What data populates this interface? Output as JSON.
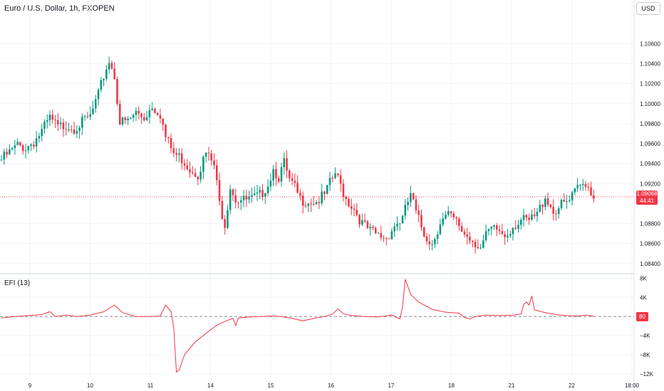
{
  "header": {
    "title": "Euro / U.S. Dollar, 1h, FXOPEN",
    "currency_button": "USD"
  },
  "price_badge": {
    "price": "1.09068",
    "countdown": "44:41"
  },
  "indicator": {
    "label": "EFI (13)",
    "last_value": "80"
  },
  "colors": {
    "up": "#089981",
    "down": "#f23645",
    "efi_line": "#f23645",
    "grid": "#f0f3fa"
  },
  "chart_data": [
    {
      "type": "candlestick",
      "title": "Euro / U.S. Dollar, 1h, FXOPEN",
      "x_tick_labels": [
        "9",
        "10",
        "11",
        "14",
        "15",
        "16",
        "17",
        "18",
        "21",
        "22",
        "18:00"
      ],
      "y_tick_labels": [
        "1.10600",
        "1.10400",
        "1.10200",
        "1.10000",
        "1.09800",
        "1.09600",
        "1.09400",
        "1.09200",
        "1.08800",
        "1.08600",
        "1.08400"
      ],
      "ylim": [
        1.0832,
        1.1088
      ],
      "last_price": 1.09068,
      "approx_close_path": [
        [
          0,
          1.0944
        ],
        [
          3,
          1.0951
        ],
        [
          6,
          1.0958
        ],
        [
          9,
          1.0956
        ],
        [
          12,
          1.0962
        ],
        [
          15,
          1.0972
        ],
        [
          18,
          1.0985
        ],
        [
          21,
          1.0976
        ],
        [
          24,
          1.0979
        ],
        [
          27,
          1.0976
        ],
        [
          30,
          1.0981
        ],
        [
          33,
          1.0987
        ],
        [
          36,
          1.1008
        ],
        [
          38,
          1.1028
        ],
        [
          40,
          1.1043
        ],
        [
          42,
          1.1028
        ],
        [
          44,
          1.0981
        ],
        [
          47,
          1.0982
        ],
        [
          50,
          1.0991
        ],
        [
          53,
          1.0986
        ],
        [
          56,
          1.0998
        ],
        [
          59,
          1.099
        ],
        [
          61,
          1.0966
        ],
        [
          64,
          1.095
        ],
        [
          67,
          1.0945
        ],
        [
          70,
          1.0935
        ],
        [
          73,
          1.093
        ],
        [
          76,
          1.095
        ],
        [
          79,
          1.0938
        ],
        [
          81,
          1.09
        ],
        [
          83,
          1.088
        ],
        [
          85,
          1.0918
        ],
        [
          87,
          1.0905
        ],
        [
          90,
          1.0903
        ],
        [
          93,
          1.0904
        ],
        [
          96,
          1.0908
        ],
        [
          99,
          1.092
        ],
        [
          101,
          1.0935
        ],
        [
          103,
          1.0927
        ],
        [
          105,
          1.094
        ],
        [
          107,
          1.0922
        ],
        [
          109,
          1.0915
        ],
        [
          111,
          1.0904
        ],
        [
          114,
          1.0903
        ],
        [
          117,
          1.0902
        ],
        [
          120,
          1.0908
        ],
        [
          122,
          1.092
        ],
        [
          124,
          1.093
        ],
        [
          126,
          1.0918
        ],
        [
          128,
          1.0905
        ],
        [
          131,
          1.0895
        ],
        [
          134,
          1.088
        ],
        [
          137,
          1.0872
        ],
        [
          140,
          1.0868
        ],
        [
          143,
          1.0866
        ],
        [
          146,
          1.0878
        ],
        [
          149,
          1.0885
        ],
        [
          152,
          1.091
        ],
        [
          154,
          1.089
        ],
        [
          157,
          1.087
        ],
        [
          160,
          1.086
        ],
        [
          163,
          1.0882
        ],
        [
          166,
          1.0888
        ],
        [
          169,
          1.0881
        ],
        [
          172,
          1.087
        ],
        [
          175,
          1.0864
        ],
        [
          178,
          1.0856
        ],
        [
          181,
          1.0872
        ],
        [
          184,
          1.0874
        ],
        [
          187,
          1.0868
        ],
        [
          190,
          1.0878
        ],
        [
          193,
          1.0883
        ],
        [
          196,
          1.0882
        ],
        [
          199,
          1.0889
        ],
        [
          202,
          1.0908
        ],
        [
          205,
          1.0892
        ],
        [
          208,
          1.0898
        ],
        [
          211,
          1.0902
        ],
        [
          214,
          1.0915
        ],
        [
          217,
          1.0922
        ],
        [
          220,
          1.0907
        ]
      ]
    },
    {
      "type": "line",
      "title": "EFI (13)",
      "y_tick_labels": [
        "8K",
        "4K",
        "−4K",
        "−8K",
        "−12K"
      ],
      "ylim": [
        -12600,
        8500
      ],
      "series": [
        {
          "name": "EFI (13)",
          "points": [
            [
              0,
              -300
            ],
            [
              5,
              0
            ],
            [
              10,
              200
            ],
            [
              15,
              400
            ],
            [
              18,
              1000
            ],
            [
              20,
              0
            ],
            [
              24,
              300
            ],
            [
              28,
              0
            ],
            [
              33,
              300
            ],
            [
              38,
              1000
            ],
            [
              42,
              2400
            ],
            [
              45,
              800
            ],
            [
              50,
              0
            ],
            [
              55,
              0
            ],
            [
              59,
              100
            ],
            [
              61,
              2400
            ],
            [
              63,
              1000
            ],
            [
              64,
              -2200
            ],
            [
              65,
              -11600
            ],
            [
              66,
              -11200
            ],
            [
              68,
              -8000
            ],
            [
              72,
              -5300
            ],
            [
              76,
              -3500
            ],
            [
              80,
              -1800
            ],
            [
              84,
              -800
            ],
            [
              86,
              -400
            ],
            [
              87,
              -1900
            ],
            [
              88,
              -300
            ],
            [
              92,
              -100
            ],
            [
              96,
              0
            ],
            [
              100,
              100
            ],
            [
              104,
              0
            ],
            [
              108,
              -400
            ],
            [
              112,
              -900
            ],
            [
              116,
              -400
            ],
            [
              120,
              0
            ],
            [
              123,
              500
            ],
            [
              125,
              1600
            ],
            [
              127,
              600
            ],
            [
              130,
              200
            ],
            [
              135,
              0
            ],
            [
              140,
              -100
            ],
            [
              145,
              300
            ],
            [
              148,
              -500
            ],
            [
              149,
              2000
            ],
            [
              150,
              7800
            ],
            [
              152,
              4600
            ],
            [
              155,
              3000
            ],
            [
              160,
              1500
            ],
            [
              165,
              900
            ],
            [
              170,
              700
            ],
            [
              172,
              -200
            ],
            [
              174,
              -500
            ],
            [
              176,
              0
            ],
            [
              180,
              300
            ],
            [
              185,
              200
            ],
            [
              190,
              300
            ],
            [
              193,
              500
            ],
            [
              194,
              2500
            ],
            [
              195,
              3000
            ],
            [
              196,
              2400
            ],
            [
              197,
              4300
            ],
            [
              198,
              1400
            ],
            [
              202,
              800
            ],
            [
              206,
              400
            ],
            [
              210,
              200
            ],
            [
              214,
              100
            ],
            [
              217,
              300
            ],
            [
              220,
              80
            ]
          ]
        }
      ]
    }
  ]
}
